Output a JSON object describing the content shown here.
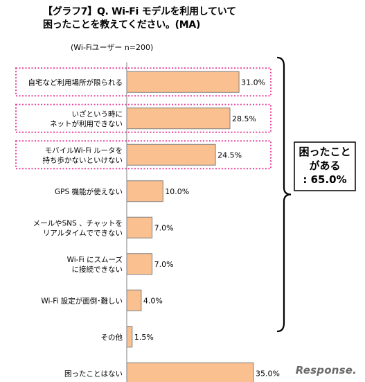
{
  "title": "【グラフ7】Q. Wi-Fi モデルを利用していて\n困ったことを教えてください。(MA)",
  "subtitle": "(Wi-Fiユーザー n=200)",
  "callout": {
    "lines": [
      "困ったこと",
      "がある",
      ": 65.0%"
    ]
  },
  "watermark": "Response.",
  "colors": {
    "bar_fill": "#FAC090",
    "bar_stroke": "#7F7F7F",
    "highlight_box": "#E8429B",
    "axis": "#7F7F7F"
  },
  "chart_data": {
    "type": "bar",
    "orientation": "horizontal",
    "unit": "%",
    "categories": [
      [
        "自宅など利用場所が限られる"
      ],
      [
        "いざという時に",
        "ネットが利用できない"
      ],
      [
        "モバイルWi-Fi ルータを",
        "持ち歩かないといけない"
      ],
      [
        "GPS 機能が使えない"
      ],
      [
        "メールやSNS 、チャットを",
        "リアルタイムでできない"
      ],
      [
        "Wi-Fi にスムーズ",
        "に接続できない"
      ],
      [
        "Wi-Fi 設定が面倒･難しい"
      ],
      [
        "その他"
      ],
      [
        "困ったことはない"
      ]
    ],
    "values": [
      31.0,
      28.5,
      24.5,
      10.0,
      7.0,
      7.0,
      4.0,
      1.5,
      35.0
    ],
    "value_labels": [
      "31.0%",
      "28.5%",
      "24.5%",
      "10.0%",
      "7.0%",
      "7.0%",
      "4.0%",
      "1.5%",
      "35.0%"
    ],
    "highlighted": [
      0,
      1,
      2
    ],
    "xlim": [
      0,
      35.0
    ]
  }
}
